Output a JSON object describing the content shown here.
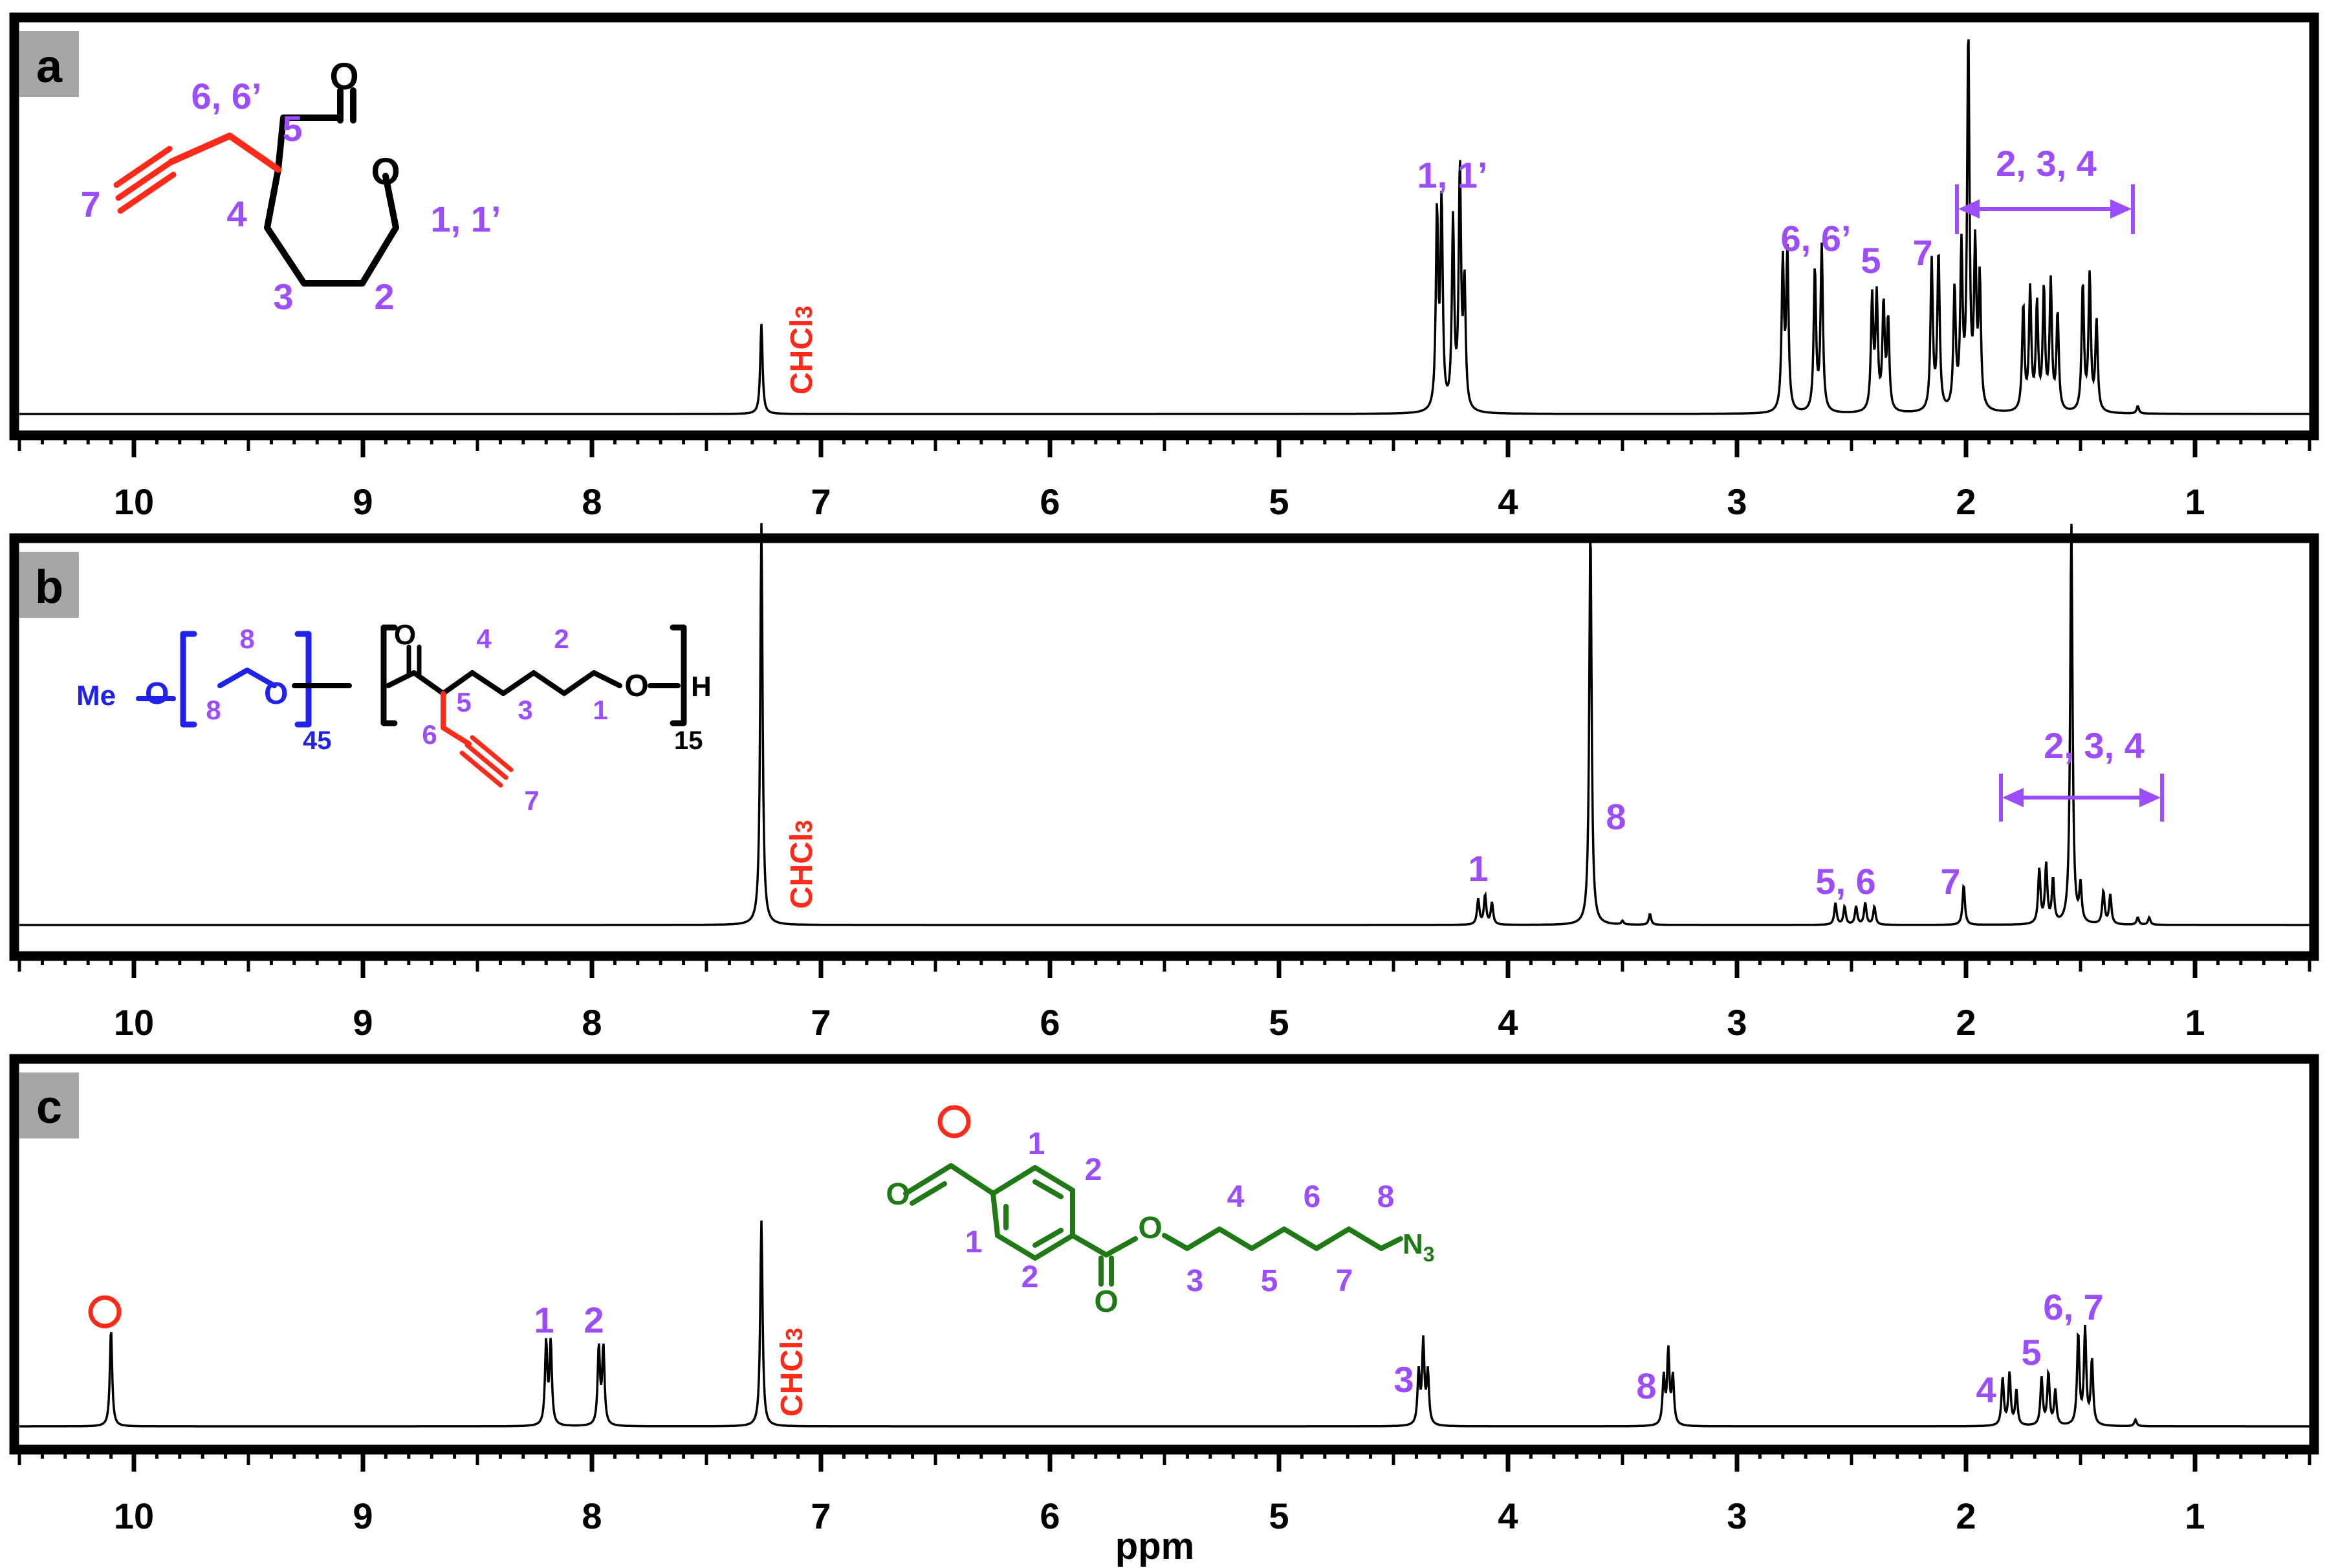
{
  "colors": {
    "purple": "#9b4dff",
    "red": "#ff2a1a",
    "blue": "#1f22e8",
    "green": "#1f7a16",
    "black": "#000000",
    "panel_label_bg": "#a6a6a6"
  },
  "x_axis": {
    "label": "ppm",
    "ticks": [
      "10",
      "9",
      "8",
      "7",
      "6",
      "5",
      "4",
      "3",
      "2",
      "1"
    ],
    "range": [
      10.5,
      0.5
    ],
    "reversed": true
  },
  "panels": [
    {
      "letter": "a",
      "solvent_label": "CHCl",
      "solvent_sub": "3",
      "structure_labels": [
        "6, 6’",
        "5",
        "7",
        "4",
        "3",
        "2",
        "1, 1’"
      ],
      "carbonyl_o": "O",
      "ring_o": "O",
      "peak_labels": [
        "1, 1’",
        "6, 6’",
        "5",
        "7",
        "2, 3, 4"
      ]
    },
    {
      "letter": "b",
      "solvent_label": "CHCl",
      "solvent_sub": "3",
      "structure": {
        "me": "Me",
        "o_labels": [
          "O",
          "O",
          "O",
          "O"
        ],
        "h": "H",
        "n_peg": "45",
        "n_pcl": "15",
        "numbers": [
          "8",
          "8",
          "4",
          "2",
          "5",
          "3",
          "1",
          "6",
          "7"
        ]
      },
      "peak_labels": [
        "1",
        "8",
        "5, 6",
        "7",
        "2, 3, 4"
      ]
    },
    {
      "letter": "c",
      "solvent_label": "CHCl",
      "solvent_sub": "3",
      "structure": {
        "o_labels": [
          "O",
          "O",
          "O"
        ],
        "azide": "N",
        "azide_sub": "3",
        "numbers": [
          "1",
          "2",
          "1",
          "2",
          "4",
          "6",
          "8",
          "3",
          "5",
          "7"
        ]
      },
      "peak_labels": [
        "1",
        "2",
        "3",
        "8",
        "4",
        "5",
        "6, 7"
      ]
    }
  ],
  "chart_data": [
    {
      "type": "line",
      "title": "a",
      "xlabel": "ppm",
      "xlim": [
        10.5,
        0.5
      ],
      "peaks": [
        {
          "x": 7.26,
          "h": 0.24
        },
        {
          "x": 4.31,
          "h": 0.52
        },
        {
          "x": 4.29,
          "h": 0.55
        },
        {
          "x": 4.24,
          "h": 0.5
        },
        {
          "x": 4.21,
          "h": 0.64
        },
        {
          "x": 4.19,
          "h": 0.33
        },
        {
          "x": 2.8,
          "h": 0.4
        },
        {
          "x": 2.78,
          "h": 0.42
        },
        {
          "x": 2.66,
          "h": 0.38
        },
        {
          "x": 2.63,
          "h": 0.44
        },
        {
          "x": 2.41,
          "h": 0.3
        },
        {
          "x": 2.39,
          "h": 0.3
        },
        {
          "x": 2.36,
          "h": 0.28
        },
        {
          "x": 2.34,
          "h": 0.24
        },
        {
          "x": 2.15,
          "h": 0.4
        },
        {
          "x": 2.12,
          "h": 0.42
        },
        {
          "x": 2.05,
          "h": 0.32
        },
        {
          "x": 2.02,
          "h": 0.42
        },
        {
          "x": 1.99,
          "h": 1.0
        },
        {
          "x": 1.96,
          "h": 0.42
        },
        {
          "x": 1.94,
          "h": 0.34
        },
        {
          "x": 1.75,
          "h": 0.28
        },
        {
          "x": 1.72,
          "h": 0.32
        },
        {
          "x": 1.69,
          "h": 0.28
        },
        {
          "x": 1.66,
          "h": 0.32
        },
        {
          "x": 1.63,
          "h": 0.34
        },
        {
          "x": 1.6,
          "h": 0.26
        },
        {
          "x": 1.49,
          "h": 0.34
        },
        {
          "x": 1.46,
          "h": 0.36
        },
        {
          "x": 1.43,
          "h": 0.24
        },
        {
          "x": 1.25,
          "h": 0.02
        }
      ]
    },
    {
      "type": "line",
      "title": "b",
      "xlabel": "ppm",
      "xlim": [
        10.5,
        0.5
      ],
      "peaks": [
        {
          "x": 7.26,
          "h": 1.1
        },
        {
          "x": 4.13,
          "h": 0.07
        },
        {
          "x": 4.1,
          "h": 0.08
        },
        {
          "x": 4.07,
          "h": 0.06
        },
        {
          "x": 3.64,
          "h": 1.1
        },
        {
          "x": 3.5,
          "h": 0.01
        },
        {
          "x": 3.38,
          "h": 0.03
        },
        {
          "x": 2.57,
          "h": 0.06
        },
        {
          "x": 2.53,
          "h": 0.05
        },
        {
          "x": 2.48,
          "h": 0.05
        },
        {
          "x": 2.44,
          "h": 0.06
        },
        {
          "x": 2.4,
          "h": 0.05
        },
        {
          "x": 2.01,
          "h": 0.11
        },
        {
          "x": 1.68,
          "h": 0.15
        },
        {
          "x": 1.65,
          "h": 0.16
        },
        {
          "x": 1.62,
          "h": 0.12
        },
        {
          "x": 1.54,
          "h": 1.1
        },
        {
          "x": 1.5,
          "h": 0.1
        },
        {
          "x": 1.4,
          "h": 0.09
        },
        {
          "x": 1.37,
          "h": 0.08
        },
        {
          "x": 1.25,
          "h": 0.02
        },
        {
          "x": 1.2,
          "h": 0.02
        }
      ]
    },
    {
      "type": "line",
      "title": "c",
      "xlabel": "ppm",
      "xlim": [
        10.5,
        0.5
      ],
      "peaks": [
        {
          "x": 10.1,
          "h": 0.45
        },
        {
          "x": 8.2,
          "h": 0.38
        },
        {
          "x": 8.18,
          "h": 0.38
        },
        {
          "x": 7.97,
          "h": 0.36
        },
        {
          "x": 7.95,
          "h": 0.36
        },
        {
          "x": 7.26,
          "h": 0.95
        },
        {
          "x": 4.39,
          "h": 0.24
        },
        {
          "x": 4.37,
          "h": 0.38
        },
        {
          "x": 4.35,
          "h": 0.24
        },
        {
          "x": 3.32,
          "h": 0.22
        },
        {
          "x": 3.3,
          "h": 0.34
        },
        {
          "x": 3.28,
          "h": 0.22
        },
        {
          "x": 1.84,
          "h": 0.22
        },
        {
          "x": 1.81,
          "h": 0.24
        },
        {
          "x": 1.78,
          "h": 0.16
        },
        {
          "x": 1.67,
          "h": 0.22
        },
        {
          "x": 1.64,
          "h": 0.24
        },
        {
          "x": 1.61,
          "h": 0.16
        },
        {
          "x": 1.51,
          "h": 0.42
        },
        {
          "x": 1.48,
          "h": 0.44
        },
        {
          "x": 1.45,
          "h": 0.3
        },
        {
          "x": 1.26,
          "h": 0.03
        }
      ]
    }
  ]
}
